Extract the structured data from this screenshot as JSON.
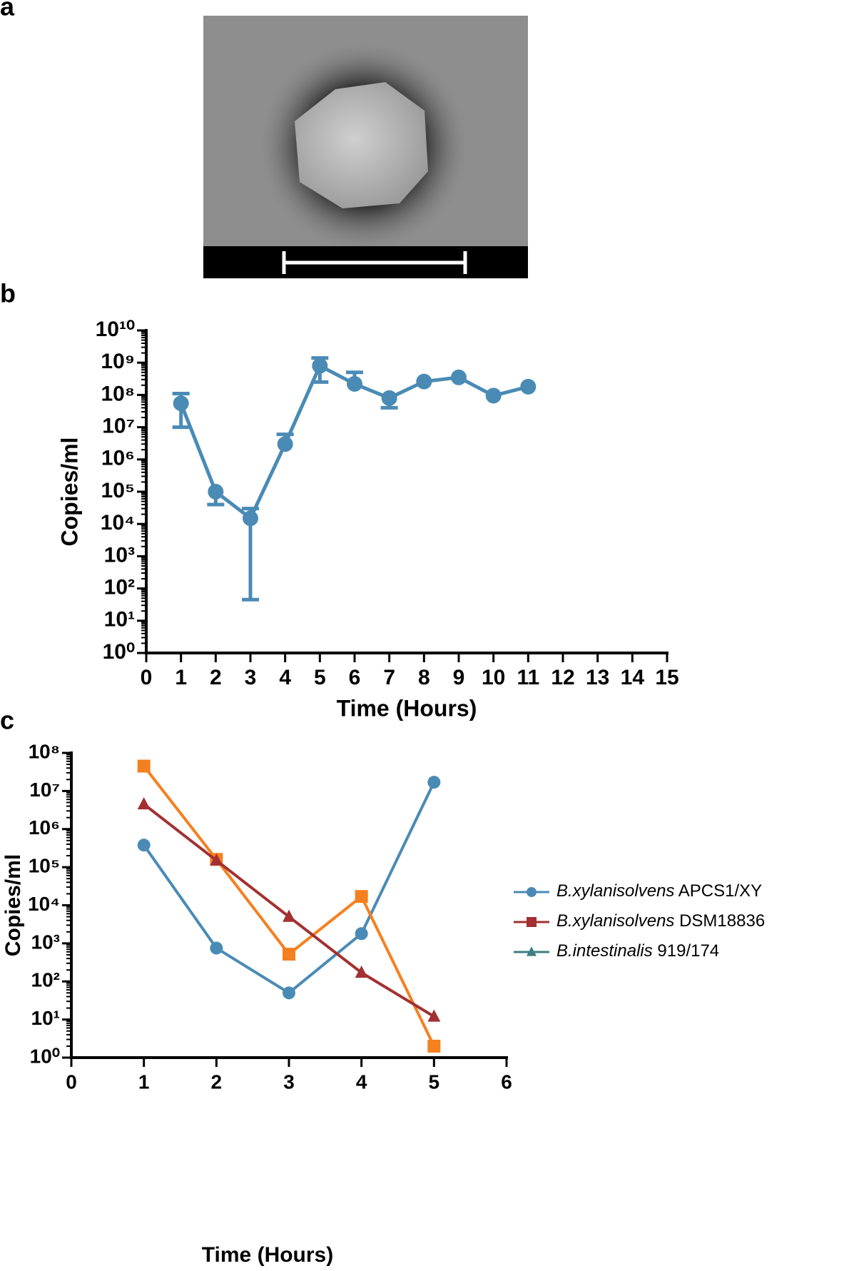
{
  "panel_labels": [
    "a",
    "b",
    "c"
  ],
  "chart_data": [
    {
      "type": "line",
      "log_y": true,
      "x_label": "Time (Hours)",
      "y_label": "Copies/ml",
      "x": [
        1,
        2,
        3,
        4,
        5,
        6,
        7,
        8,
        9,
        10,
        11
      ],
      "series": [
        {
          "color": "#4a8bb5",
          "marker": "circle",
          "values": [
            55000000,
            100000,
            15000,
            3000000,
            800000000,
            220000000,
            80000000,
            260000000,
            350000000,
            95000000,
            180000000
          ],
          "error_low": [
            10000000,
            40000,
            45,
            null,
            250000000,
            null,
            40000000,
            null,
            null,
            null,
            null
          ],
          "error_high": [
            110000000,
            null,
            30000,
            6000000,
            1400000000,
            500000000,
            null,
            null,
            null,
            null,
            null
          ]
        }
      ],
      "xlim": [
        0,
        15
      ],
      "xticks": [
        0,
        1,
        2,
        3,
        4,
        5,
        6,
        7,
        8,
        9,
        10,
        11,
        12,
        13,
        14,
        15
      ],
      "ylim": [
        1,
        10000000000
      ],
      "yticks": [
        {
          "value": 1,
          "label": "10⁰"
        },
        {
          "value": 10,
          "label": "10¹"
        },
        {
          "value": 100,
          "label": "10²"
        },
        {
          "value": 1000,
          "label": "10³"
        },
        {
          "value": 10000,
          "label": "10⁴"
        },
        {
          "value": 100000,
          "label": "10⁵"
        },
        {
          "value": 1000000,
          "label": "10⁶"
        },
        {
          "value": 10000000,
          "label": "10⁷"
        },
        {
          "value": 100000000,
          "label": "10⁸"
        },
        {
          "value": 1000000000,
          "label": "10⁹"
        },
        {
          "value": 10000000000,
          "label": "10¹⁰"
        }
      ]
    },
    {
      "type": "line",
      "log_y": true,
      "x_label": "Time (Hours)",
      "y_label": "Copies/ml",
      "x": [
        1,
        2,
        3,
        4,
        5
      ],
      "series": [
        {
          "name": "B.xylanisolvens APCS1/XY",
          "color": "#4a8bb5",
          "legend_color": "#4a8bb5",
          "marker": "circle",
          "values": [
            380000,
            750,
            50,
            1800,
            17000000
          ]
        },
        {
          "name": "B.xylanisolvens DSM18836",
          "color": "#f5801f",
          "legend_color": "#a33131",
          "marker": "square",
          "values": [
            45000000,
            160000,
            520,
            17000,
            2
          ]
        },
        {
          "name": "B.intestinalis 919/174",
          "color": "#a33131",
          "legend_color": "#3d7f80",
          "marker": "triangle",
          "values": [
            4500000,
            150000,
            5000,
            170,
            12
          ]
        }
      ],
      "xlim": [
        0,
        6
      ],
      "xticks": [
        0,
        1,
        2,
        3,
        4,
        5,
        6
      ],
      "ylim": [
        1,
        100000000
      ],
      "yticks": [
        {
          "value": 1,
          "label": "10⁰"
        },
        {
          "value": 10,
          "label": "10¹"
        },
        {
          "value": 100,
          "label": "10²"
        },
        {
          "value": 1000,
          "label": "10³"
        },
        {
          "value": 10000,
          "label": "10⁴"
        },
        {
          "value": 100000,
          "label": "10⁵"
        },
        {
          "value": 1000000,
          "label": "10⁶"
        },
        {
          "value": 10000000,
          "label": "10⁷"
        },
        {
          "value": 100000000,
          "label": "10⁸"
        }
      ]
    }
  ]
}
